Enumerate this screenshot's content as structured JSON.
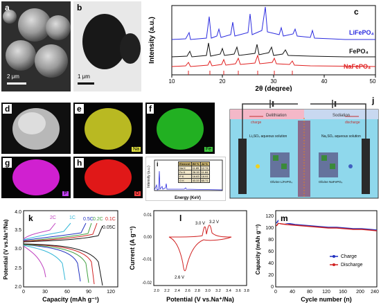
{
  "panels": {
    "a": {
      "tag": "a",
      "scalebar": "2 μm"
    },
    "b": {
      "tag": "b",
      "scalebar": "1 μm"
    },
    "c": {
      "tag": "c",
      "ylabel": "Intensity (a.u.)",
      "xlabel": "2θ (degree)",
      "xticks": [
        "10",
        "20",
        "30",
        "40",
        "50"
      ],
      "legend": [
        "LiFePO₄",
        "FePO₄",
        "NaFePO₄"
      ],
      "legend_colors": [
        "#2b2bdf",
        "#111111",
        "#e02020"
      ]
    },
    "d": {
      "tag": "d"
    },
    "e": {
      "tag": "e",
      "element": "Na"
    },
    "f": {
      "tag": "f",
      "element": "Fe"
    },
    "g": {
      "tag": "g",
      "element": "P"
    },
    "h": {
      "tag": "h",
      "element": "O"
    },
    "i": {
      "tag": "i",
      "ylabel": "Intensity (a.u.)",
      "xlabel": "Energy (KeV)",
      "xticks": [
        "0",
        "2",
        "4",
        "6",
        "8"
      ],
      "table_header": [
        "Element",
        "Wt %",
        "At %"
      ],
      "table_rows": [
        [
          "Na K",
          "11.89",
          "12.74"
        ],
        [
          "Fe K",
          "28.15",
          "11.84"
        ],
        [
          "P K",
          "16.63",
          "18.91"
        ],
        [
          "O K",
          "43.33",
          "65.71"
        ]
      ],
      "peaks": [
        "O",
        "Fe",
        "Na",
        "P",
        "Fe",
        "Fe"
      ]
    },
    "j": {
      "tag": "j",
      "delithiation": "Delithiation",
      "sodiation": "Sodiation",
      "charge": "charge",
      "discharge": "discharge",
      "left_solution": "Li₂SO₄ aqueous solution",
      "right_solution": "Na₂SO₄ aqueous solution",
      "left_material": "Olivine LiFePO₄",
      "right_material": "Olivine NaFePO₄"
    },
    "k": {
      "tag": "k",
      "ylabel": "Potential (V vs.Na⁺/Na)",
      "xlabel": "Capacity (mAh g⁻¹)",
      "yticks": [
        "2.0",
        "2.5",
        "3.0",
        "3.5",
        "4.0"
      ],
      "xticks": [
        "0",
        "30",
        "60",
        "90",
        "120"
      ],
      "rates": [
        "2C",
        "1C",
        "0.5C",
        "0.2C",
        "0.1C",
        "0.05C"
      ],
      "rate_colors": [
        "#c040c0",
        "#35b8d8",
        "#2030c0",
        "#40a040",
        "#d02020",
        "#111111"
      ]
    },
    "l": {
      "tag": "l",
      "ylabel": "Current (A g⁻¹)",
      "xlabel": "Potential (V vs.Na⁺/Na)",
      "yticks": [
        "0.01",
        "0.00",
        "-0.01",
        "-0.02"
      ],
      "xticks": [
        "2.0",
        "2.2",
        "2.4",
        "2.6",
        "2.8",
        "3.0",
        "3.2",
        "3.4",
        "3.6",
        "3.8"
      ],
      "annot": [
        "3.0 V",
        "3.2 V",
        "2.6 V"
      ]
    },
    "m": {
      "tag": "m",
      "ylabel": "Capacity (mAh g⁻¹)",
      "xlabel": "Cycle number (n)",
      "yticks": [
        "0",
        "20",
        "40",
        "60",
        "80",
        "100",
        "120"
      ],
      "xticks": [
        "0",
        "40",
        "80",
        "120",
        "160",
        "200",
        "240"
      ],
      "legend": [
        "Charge",
        "Discharge"
      ],
      "legend_colors": [
        "#2030c0",
        "#d02020"
      ]
    }
  },
  "chart_data": [
    {
      "type": "line",
      "title": "",
      "xlabel": "2θ (degree)",
      "ylabel": "Intensity (a.u.)",
      "xlim": [
        10,
        50
      ],
      "series": [
        {
          "name": "LiFePO₄",
          "x": [
            17,
            20.8,
            22.6,
            25.5,
            29.7,
            32.2,
            35.6,
            37.9,
            39.8,
            42.2,
            44.1
          ],
          "y": [
            0.2,
            0.6,
            0.3,
            0.5,
            0.7,
            0.3,
            1.0,
            0.3,
            0.35,
            0.25,
            0.2
          ]
        },
        {
          "name": "FePO₄",
          "x": [
            17.5,
            20.4,
            23.5,
            26,
            30.8,
            34,
            36.5,
            38
          ],
          "y": [
            0.2,
            0.5,
            0.3,
            0.35,
            0.5,
            0.3,
            0.45,
            0.2
          ]
        },
        {
          "name": "NaFePO₄",
          "x": [
            17.2,
            20.5,
            23,
            25.8,
            30.5,
            33.5,
            35.8,
            38.5,
            40.5
          ],
          "y": [
            0.15,
            0.2,
            0.25,
            0.3,
            0.4,
            0.3,
            0.35,
            0.2,
            0.15
          ]
        }
      ]
    },
    {
      "type": "line",
      "title": "",
      "xlabel": "Capacity (mAh g⁻¹)",
      "ylabel": "Potential (V vs.Na⁺/Na)",
      "xlim": [
        0,
        130
      ],
      "ylim": [
        2.0,
        4.0
      ],
      "series": [
        {
          "name": "2C",
          "max_capacity": 45
        },
        {
          "name": "1C",
          "max_capacity": 70
        },
        {
          "name": "0.5C",
          "max_capacity": 95
        },
        {
          "name": "0.2C",
          "max_capacity": 105
        },
        {
          "name": "0.1C",
          "max_capacity": 112
        },
        {
          "name": "0.05C",
          "max_capacity": 120
        }
      ]
    },
    {
      "type": "line",
      "title": "",
      "xlabel": "Potential (V vs.Na⁺/Na)",
      "ylabel": "Current (A g⁻¹)",
      "xlim": [
        2.0,
        3.8
      ],
      "ylim": [
        -0.02,
        0.01
      ],
      "peaks": [
        {
          "label": "3.0 V",
          "x": 3.05,
          "y": 0.0045
        },
        {
          "label": "3.2 V",
          "x": 3.18,
          "y": 0.0055
        },
        {
          "label": "2.6 V",
          "x": 2.62,
          "y": -0.0185
        }
      ]
    },
    {
      "type": "scatter",
      "title": "",
      "xlabel": "Cycle number (n)",
      "ylabel": "Capacity (mAh g⁻¹)",
      "xlim": [
        0,
        240
      ],
      "ylim": [
        0,
        130
      ],
      "series": [
        {
          "name": "Charge",
          "x": [
            1,
            10,
            20,
            40,
            60,
            80,
            100,
            120,
            140,
            160,
            180,
            200,
            220,
            240
          ],
          "y": [
            118,
            112,
            110,
            108,
            107,
            106,
            105,
            104,
            104,
            103,
            102,
            102,
            101,
            100
          ]
        },
        {
          "name": "Discharge",
          "x": [
            1,
            10,
            20,
            40,
            60,
            80,
            100,
            120,
            140,
            160,
            180,
            200,
            220,
            240
          ],
          "y": [
            112,
            110,
            108,
            107,
            106,
            105,
            104,
            103,
            103,
            102,
            101,
            101,
            100,
            99
          ]
        }
      ]
    }
  ]
}
